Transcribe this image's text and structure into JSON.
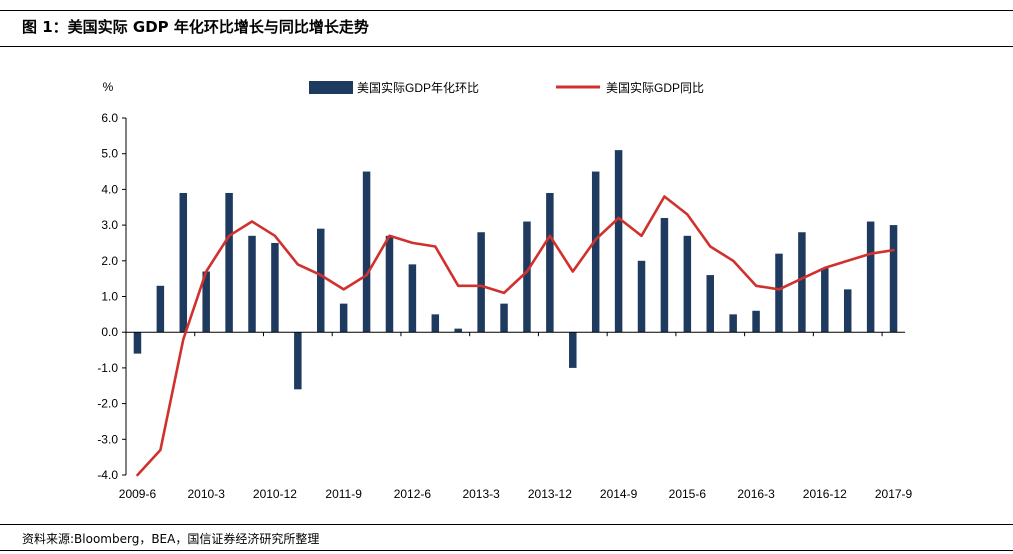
{
  "figure": {
    "title": "图 1：美国实际 GDP 年化环比增长与同比增长走势",
    "source": "资料来源:Bloomberg，BEA，国信证券经济研究所整理"
  },
  "colors": {
    "bar": "#1f3a5f",
    "line": "#d0312d",
    "axis": "#000000"
  },
  "chart_data": {
    "type": "bar",
    "title": "",
    "ylabel": "%",
    "ylim": [
      -4.0,
      6.0
    ],
    "yticks": [
      "6.0",
      "5.0",
      "4.0",
      "3.0",
      "2.0",
      "1.0",
      "0.0",
      "-1.0",
      "-2.0",
      "-3.0",
      "-4.0"
    ],
    "xtick_labels": [
      "2009-6",
      "2010-3",
      "2010-12",
      "2011-9",
      "2012-6",
      "2013-3",
      "2013-12",
      "2014-9",
      "2015-6",
      "2016-3",
      "2016-12",
      "2017-9"
    ],
    "legend_position": "top",
    "categories": [
      "2009-6",
      "2009-9",
      "2009-12",
      "2010-3",
      "2010-6",
      "2010-9",
      "2010-12",
      "2011-3",
      "2011-6",
      "2011-9",
      "2011-12",
      "2012-3",
      "2012-6",
      "2012-9",
      "2012-12",
      "2013-3",
      "2013-6",
      "2013-9",
      "2013-12",
      "2014-3",
      "2014-6",
      "2014-9",
      "2014-12",
      "2015-3",
      "2015-6",
      "2015-9",
      "2015-12",
      "2016-3",
      "2016-6",
      "2016-9",
      "2016-12",
      "2017-3",
      "2017-6",
      "2017-9"
    ],
    "series": [
      {
        "name": "美国实际GDP年化环比",
        "kind": "bar",
        "values": [
          -0.6,
          1.3,
          3.9,
          1.7,
          3.9,
          2.7,
          2.5,
          -1.6,
          2.9,
          0.8,
          4.5,
          2.7,
          1.9,
          0.5,
          0.1,
          2.8,
          0.8,
          3.1,
          3.9,
          -1.0,
          4.5,
          5.1,
          2.0,
          3.2,
          2.7,
          1.6,
          0.5,
          0.6,
          2.2,
          2.8,
          1.8,
          1.2,
          3.1,
          3.0
        ]
      },
      {
        "name": "美国实际GDP同比",
        "kind": "line",
        "values": [
          -4.0,
          -3.3,
          -0.2,
          1.7,
          2.7,
          3.1,
          2.7,
          1.9,
          1.6,
          1.2,
          1.6,
          2.7,
          2.5,
          2.4,
          1.3,
          1.3,
          1.1,
          1.7,
          2.7,
          1.7,
          2.6,
          3.2,
          2.7,
          3.8,
          3.3,
          2.4,
          2.0,
          1.3,
          1.2,
          1.5,
          1.8,
          2.0,
          2.2,
          2.3
        ]
      }
    ]
  }
}
